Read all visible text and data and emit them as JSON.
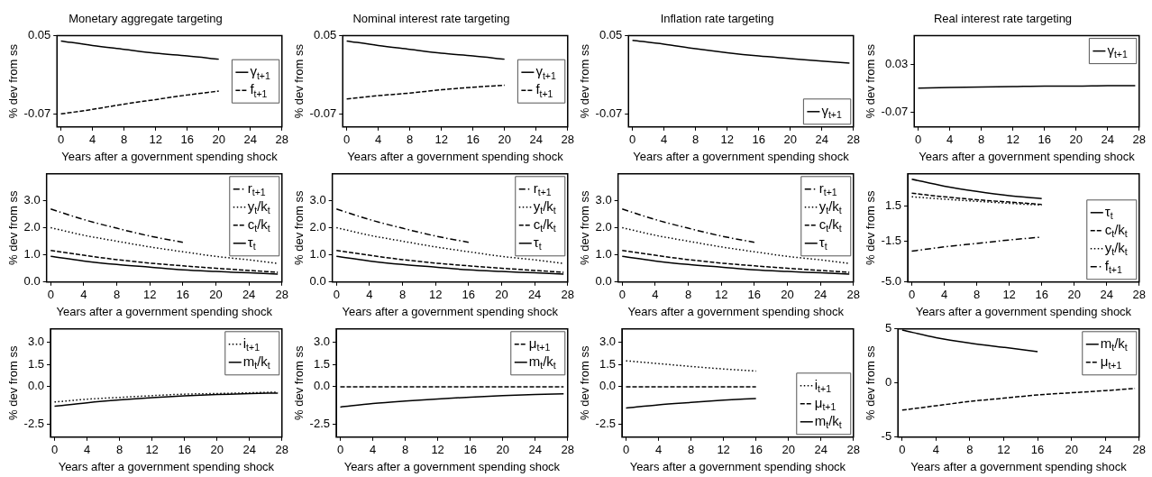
{
  "chart_data": [
    {
      "type": "line",
      "title": "Monetary aggregate targeting",
      "xlabel": "Years after a government spending shock",
      "ylabel": "% dev from ss",
      "x": [
        0,
        4,
        8,
        12,
        16,
        20
      ],
      "xlim": [
        -0.5,
        28
      ],
      "xticks": [
        0,
        4,
        8,
        12,
        16,
        20,
        24,
        28
      ],
      "ylim": [
        -0.09,
        0.05
      ],
      "yticks": [
        -0.07,
        0.05
      ],
      "legend": "right",
      "series": [
        {
          "name": "γ$_{t+1}$",
          "color": "#000000",
          "line_style": "solid",
          "values": [
            0.042,
            0.035,
            0.029,
            0.023,
            0.019,
            0.014
          ]
        },
        {
          "name": "f$_{t+1}$",
          "color": "#000000",
          "line_style": "dashed",
          "values": [
            -0.07,
            -0.063,
            -0.055,
            -0.048,
            -0.041,
            -0.035
          ]
        }
      ]
    },
    {
      "type": "line",
      "title": "Nominal interest rate targeting",
      "xlabel": "Years after a government spending shock",
      "ylabel": "% dev from ss",
      "x": [
        0,
        4,
        8,
        12,
        16,
        20
      ],
      "xlim": [
        -0.5,
        28
      ],
      "xticks": [
        0,
        4,
        8,
        12,
        16,
        20,
        24,
        28
      ],
      "ylim": [
        -0.09,
        0.05
      ],
      "yticks": [
        -0.07,
        0.05
      ],
      "legend": "right",
      "series": [
        {
          "name": "γ$_{t+1}$",
          "color": "#000000",
          "line_style": "solid",
          "values": [
            0.042,
            0.035,
            0.029,
            0.023,
            0.019,
            0.014
          ]
        },
        {
          "name": "f$_{t+1}$",
          "color": "#000000",
          "line_style": "dashed",
          "values": [
            -0.047,
            -0.042,
            -0.038,
            -0.033,
            -0.029,
            -0.026
          ]
        }
      ]
    },
    {
      "type": "line",
      "title": "Inflation rate targeting",
      "xlabel": "Years after a government spending shock",
      "ylabel": "% dev from ss",
      "x": [
        0,
        4,
        8,
        12,
        16,
        20,
        24,
        27.5
      ],
      "xlim": [
        -0.5,
        28
      ],
      "xticks": [
        0,
        4,
        8,
        12,
        16,
        20,
        24,
        28
      ],
      "ylim": [
        -0.09,
        0.05
      ],
      "yticks": [
        -0.07,
        0.05
      ],
      "legend": "bottom right",
      "series": [
        {
          "name": "γ$_{t+1}$",
          "color": "#000000",
          "line_style": "solid",
          "values": [
            0.043,
            0.037,
            0.03,
            0.024,
            0.019,
            0.015,
            0.011,
            0.008
          ]
        }
      ]
    },
    {
      "type": "line",
      "title": "Real interest rate targeting",
      "xlabel": "Years after a government spending shock",
      "ylabel": "% dev from ss",
      "x": [
        0,
        4,
        8,
        12,
        16,
        20,
        24,
        27.5
      ],
      "xlim": [
        -0.5,
        28
      ],
      "xticks": [
        0,
        4,
        8,
        12,
        16,
        20,
        24,
        28
      ],
      "ylim": [
        -0.1,
        0.09
      ],
      "yticks": [
        -0.07,
        0.03
      ],
      "legend": "top right",
      "series": [
        {
          "name": "γ$_{t+1}$",
          "color": "#000000",
          "line_style": "solid",
          "values": [
            -0.019,
            -0.018,
            -0.017,
            -0.016,
            -0.015,
            -0.015,
            -0.014,
            -0.014
          ]
        }
      ]
    },
    {
      "type": "line",
      "xlabel": "Years after a government spending shock",
      "ylabel": "% dev from ss",
      "x": [
        0,
        4,
        8,
        12,
        16,
        20,
        24,
        27.5
      ],
      "xlim": [
        -0.5,
        28
      ],
      "xticks": [
        0,
        4,
        8,
        12,
        16,
        20,
        24,
        28
      ],
      "ylim": [
        0,
        4
      ],
      "yticks": [
        {
          "value": 0,
          "label": "0.0"
        },
        {
          "value": 1,
          "label": "1.0"
        },
        {
          "value": 2,
          "label": "2.0"
        },
        {
          "value": 3,
          "label": "3.0"
        }
      ],
      "legend": "top right",
      "series": [
        {
          "name": "r$_{t+1}$",
          "color": "#000000",
          "line_style": "dashdot",
          "values": [
            2.7,
            2.31,
            1.99,
            1.7,
            1.47,
            null,
            null,
            null
          ]
        },
        {
          "name": "y$_{t}$/k$_{t}$",
          "color": "#000000",
          "line_style": "dotted",
          "values": [
            2.01,
            1.73,
            1.51,
            1.3,
            1.12,
            0.95,
            0.82,
            0.69
          ]
        },
        {
          "name": "c$_{t}$/k$_{t}$",
          "color": "#000000",
          "line_style": "dashed",
          "values": [
            1.17,
            0.99,
            0.83,
            0.7,
            0.6,
            0.51,
            0.43,
            0.36
          ]
        },
        {
          "name": "τ$_{t}$",
          "color": "#000000",
          "line_style": "solid",
          "values": [
            0.95,
            0.78,
            0.65,
            0.55,
            0.45,
            0.39,
            0.34,
            0.29
          ]
        }
      ]
    },
    {
      "type": "line",
      "xlabel": "Years after a government spending shock",
      "ylabel": "% dev from ss",
      "x": [
        0,
        4,
        8,
        12,
        16,
        20,
        24,
        27.5
      ],
      "xlim": [
        -0.5,
        28
      ],
      "xticks": [
        0,
        4,
        8,
        12,
        16,
        20,
        24,
        28
      ],
      "ylim": [
        0,
        4
      ],
      "yticks": [
        {
          "value": 0,
          "label": "0.0"
        },
        {
          "value": 1,
          "label": "1.0"
        },
        {
          "value": 2,
          "label": "2.0"
        },
        {
          "value": 3,
          "label": "3.0"
        }
      ],
      "legend": "top right",
      "series": [
        {
          "name": "r$_{t+1}$",
          "color": "#000000",
          "line_style": "dashdot",
          "values": [
            2.7,
            2.31,
            1.99,
            1.7,
            1.47,
            null,
            null,
            null
          ]
        },
        {
          "name": "y$_{t}$/k$_{t}$",
          "color": "#000000",
          "line_style": "dotted",
          "values": [
            2.01,
            1.73,
            1.51,
            1.3,
            1.12,
            0.95,
            0.82,
            0.69
          ]
        },
        {
          "name": "c$_{t}$/k$_{t}$",
          "color": "#000000",
          "line_style": "dashed",
          "values": [
            1.17,
            0.99,
            0.83,
            0.7,
            0.6,
            0.51,
            0.43,
            0.36
          ]
        },
        {
          "name": "τ$_{t}$",
          "color": "#000000",
          "line_style": "solid",
          "values": [
            0.95,
            0.78,
            0.65,
            0.55,
            0.45,
            0.39,
            0.34,
            0.29
          ]
        }
      ]
    },
    {
      "type": "line",
      "xlabel": "Years after a government spending shock",
      "ylabel": "% dev from ss",
      "x": [
        0,
        4,
        8,
        12,
        16,
        20,
        24,
        27.5
      ],
      "xlim": [
        -0.5,
        28
      ],
      "xticks": [
        0,
        4,
        8,
        12,
        16,
        20,
        24,
        28
      ],
      "ylim": [
        0,
        4
      ],
      "yticks": [
        {
          "value": 0,
          "label": "0.0"
        },
        {
          "value": 1,
          "label": "1.0"
        },
        {
          "value": 2,
          "label": "2.0"
        },
        {
          "value": 3,
          "label": "3.0"
        }
      ],
      "legend": "top right",
      "series": [
        {
          "name": "r$_{t+1}$",
          "color": "#000000",
          "line_style": "dashdot",
          "values": [
            2.7,
            2.31,
            1.99,
            1.7,
            1.47,
            null,
            null,
            null
          ]
        },
        {
          "name": "y$_{t}$/k$_{t}$",
          "color": "#000000",
          "line_style": "dotted",
          "values": [
            2.01,
            1.73,
            1.51,
            1.3,
            1.12,
            0.95,
            0.82,
            0.69
          ]
        },
        {
          "name": "c$_{t}$/k$_{t}$",
          "color": "#000000",
          "line_style": "dashed",
          "values": [
            1.17,
            0.99,
            0.83,
            0.7,
            0.6,
            0.51,
            0.43,
            0.36
          ]
        },
        {
          "name": "τ$_{t}$",
          "color": "#000000",
          "line_style": "solid",
          "values": [
            0.95,
            0.78,
            0.65,
            0.55,
            0.45,
            0.39,
            0.34,
            0.29
          ]
        }
      ]
    },
    {
      "type": "line",
      "xlabel": "Years after a government spending shock",
      "ylabel": "% dev from ss",
      "x": [
        0,
        4,
        8,
        12,
        16
      ],
      "xlim": [
        -0.5,
        28
      ],
      "xticks": [
        0,
        4,
        8,
        12,
        16,
        20,
        24,
        28
      ],
      "ylim": [
        -5,
        4.2
      ],
      "yticks": [
        {
          "value": -5,
          "label": "-5.0"
        },
        -1.5,
        1.5
      ],
      "legend": "bottom right",
      "series": [
        {
          "name": "τ$_{t}$",
          "color": "#000000",
          "line_style": "solid",
          "values": [
            3.75,
            3.15,
            2.7,
            2.34,
            2.1
          ]
        },
        {
          "name": "c$_{t}$/k$_{t}$",
          "color": "#000000",
          "line_style": "dashed",
          "values": [
            2.55,
            2.25,
            2.0,
            1.8,
            1.6
          ]
        },
        {
          "name": "y$_{t}$/k$_{t}$",
          "color": "#000000",
          "line_style": "dotted",
          "values": [
            2.25,
            2.05,
            1.87,
            1.69,
            1.54
          ]
        },
        {
          "name": "f$_{t+1}$",
          "color": "#000000",
          "line_style": "dashdot",
          "values": [
            -2.37,
            -2.01,
            -1.72,
            -1.42,
            -1.18
          ]
        }
      ]
    },
    {
      "type": "line",
      "xlabel": "Years after a government spending shock",
      "ylabel": "% dev from ss",
      "x": [
        0,
        4,
        8,
        12,
        16,
        20,
        24,
        27.5
      ],
      "xlim": [
        -0.5,
        28
      ],
      "xticks": [
        0,
        4,
        8,
        12,
        16,
        20,
        24,
        28
      ],
      "ylim": [
        -3.4,
        3.9
      ],
      "yticks": [
        -2.5,
        {
          "value": 0,
          "label": "0.0"
        },
        1.5,
        {
          "value": 3,
          "label": "3.0"
        }
      ],
      "legend": "top right",
      "series": [
        {
          "name": "i$_{t+1}$",
          "color": "#000000",
          "line_style": "dotted",
          "values": [
            -1.03,
            -0.84,
            -0.72,
            -0.6,
            -0.5,
            -0.46,
            -0.41,
            -0.36
          ]
        },
        {
          "name": "m$_{t}$/k$_{t}$",
          "color": "#000000",
          "line_style": "solid",
          "values": [
            -1.32,
            -1.08,
            -0.89,
            -0.74,
            -0.62,
            -0.53,
            -0.46,
            -0.43
          ]
        }
      ]
    },
    {
      "type": "line",
      "xlabel": "Years after a government spending shock",
      "ylabel": "% dev from ss",
      "x": [
        0,
        4,
        8,
        12,
        16,
        20,
        24,
        27.5
      ],
      "xlim": [
        -0.5,
        28
      ],
      "xticks": [
        0,
        4,
        8,
        12,
        16,
        20,
        24,
        28
      ],
      "ylim": [
        -3.4,
        3.9
      ],
      "yticks": [
        -2.5,
        {
          "value": 0,
          "label": "0.0"
        },
        1.5,
        {
          "value": 3,
          "label": "3.0"
        }
      ],
      "legend": "top right",
      "series": [
        {
          "name": "μ$_{t+1}$",
          "color": "#000000",
          "line_style": "dashed",
          "values": [
            0,
            0,
            0,
            0,
            0,
            0,
            0,
            0
          ]
        },
        {
          "name": "m$_{t}$/k$_{t}$",
          "color": "#000000",
          "line_style": "solid",
          "values": [
            -1.37,
            -1.13,
            -0.96,
            -0.82,
            -0.7,
            -0.6,
            -0.53,
            -0.48
          ]
        }
      ]
    },
    {
      "type": "line",
      "xlabel": "Years after a government spending shock",
      "ylabel": "% dev from ss",
      "x": [
        0,
        4,
        8,
        12,
        16
      ],
      "xlim": [
        -0.5,
        28
      ],
      "xticks": [
        0,
        4,
        8,
        12,
        16,
        20,
        24,
        28
      ],
      "ylim": [
        -3.4,
        3.9
      ],
      "yticks": [
        -2.5,
        {
          "value": 0,
          "label": "0.0"
        },
        1.5,
        {
          "value": 3,
          "label": "3.0"
        }
      ],
      "legend": "bottom right",
      "series": [
        {
          "name": "i$_{t+1}$",
          "color": "#000000",
          "line_style": "dotted",
          "values": [
            1.75,
            1.56,
            1.37,
            1.2,
            1.06
          ]
        },
        {
          "name": "μ$_{t+1}$",
          "color": "#000000",
          "line_style": "dashed",
          "values": [
            0,
            0,
            0,
            0,
            0
          ]
        },
        {
          "name": "m$_{t}$/k$_{t}$",
          "color": "#000000",
          "line_style": "solid",
          "values": [
            -1.44,
            -1.22,
            -1.06,
            -0.91,
            -0.79
          ]
        }
      ]
    },
    {
      "type": "line",
      "xlabel": "Years after a government spending shock",
      "ylabel": "% dev from ss",
      "x": [
        0,
        4,
        8,
        12,
        16,
        20,
        24,
        27.5
      ],
      "xlim": [
        -0.5,
        28
      ],
      "xticks": [
        0,
        4,
        8,
        12,
        16,
        20,
        24,
        28
      ],
      "ylim": [
        -5,
        5
      ],
      "yticks": [
        -5,
        0,
        5
      ],
      "legend": "top right",
      "series": [
        {
          "name": "m$_{t}$/k$_{t}$",
          "color": "#000000",
          "line_style": "solid",
          "values": [
            4.9,
            4.2,
            3.7,
            3.3,
            2.9,
            null,
            null,
            null
          ]
        },
        {
          "name": "μ$_{t+1}$",
          "color": "#000000",
          "line_style": "dashed",
          "values": [
            -2.5,
            -2.1,
            -1.7,
            -1.4,
            -1.1,
            -0.9,
            -0.7,
            -0.5
          ]
        }
      ]
    }
  ]
}
